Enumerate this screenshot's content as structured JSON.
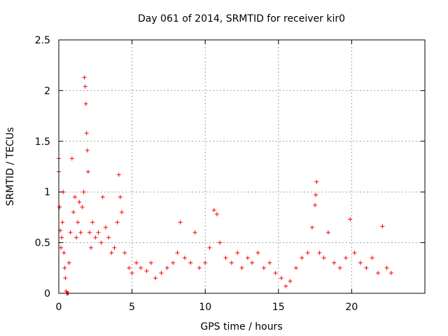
{
  "chart_data": {
    "type": "scatter",
    "title": "Day 061 of 2014, SRMTID for receiver kir0",
    "xlabel": "GPS time / hours",
    "ylabel": "SRMTID / TECUs",
    "xlim": [
      0,
      25
    ],
    "ylim": [
      0,
      2.5
    ],
    "xticks": [
      0,
      5,
      10,
      15,
      20
    ],
    "xtick_labels": [
      "0",
      "5",
      "10",
      "15",
      "20"
    ],
    "yticks": [
      0,
      0.5,
      1,
      1.5,
      2,
      2.5
    ],
    "ytick_labels": [
      "0",
      "0.5",
      "1",
      "1.5",
      "2",
      "2.5"
    ],
    "grid": true,
    "marker": "+",
    "color": "#ff0000",
    "data_extent_hours": [
      0,
      22.7
    ],
    "points": [
      [
        0.0,
        1.33
      ],
      [
        0.0,
        1.2
      ],
      [
        0.05,
        0.85
      ],
      [
        0.1,
        0.62
      ],
      [
        0.15,
        0.45
      ],
      [
        0.2,
        0.55
      ],
      [
        0.25,
        0.7
      ],
      [
        0.3,
        1.0
      ],
      [
        0.35,
        0.4
      ],
      [
        0.4,
        0.25
      ],
      [
        0.45,
        0.15
      ],
      [
        0.5,
        0.02
      ],
      [
        0.55,
        0.0
      ],
      [
        0.6,
        0.0
      ],
      [
        0.65,
        0.0
      ],
      [
        0.7,
        0.3
      ],
      [
        0.8,
        0.6
      ],
      [
        0.9,
        1.33
      ],
      [
        1.0,
        0.8
      ],
      [
        1.1,
        0.95
      ],
      [
        1.2,
        0.55
      ],
      [
        1.3,
        0.7
      ],
      [
        1.4,
        0.9
      ],
      [
        1.5,
        0.6
      ],
      [
        1.6,
        0.85
      ],
      [
        1.7,
        1.0
      ],
      [
        1.75,
        2.13
      ],
      [
        1.8,
        2.04
      ],
      [
        1.85,
        1.87
      ],
      [
        1.9,
        1.58
      ],
      [
        1.95,
        1.41
      ],
      [
        2.0,
        1.2
      ],
      [
        2.1,
        0.6
      ],
      [
        2.2,
        0.45
      ],
      [
        2.3,
        0.7
      ],
      [
        2.5,
        0.55
      ],
      [
        2.7,
        0.6
      ],
      [
        2.9,
        0.5
      ],
      [
        3.0,
        0.95
      ],
      [
        3.2,
        0.65
      ],
      [
        3.4,
        0.55
      ],
      [
        3.6,
        0.4
      ],
      [
        3.8,
        0.45
      ],
      [
        4.0,
        0.7
      ],
      [
        4.1,
        1.17
      ],
      [
        4.2,
        0.95
      ],
      [
        4.3,
        0.8
      ],
      [
        4.5,
        0.4
      ],
      [
        4.8,
        0.25
      ],
      [
        5.0,
        0.2
      ],
      [
        5.3,
        0.3
      ],
      [
        5.6,
        0.25
      ],
      [
        6.0,
        0.22
      ],
      [
        6.3,
        0.3
      ],
      [
        6.6,
        0.15
      ],
      [
        7.0,
        0.2
      ],
      [
        7.4,
        0.25
      ],
      [
        7.8,
        0.3
      ],
      [
        8.1,
        0.4
      ],
      [
        8.3,
        0.7
      ],
      [
        8.6,
        0.35
      ],
      [
        9.0,
        0.3
      ],
      [
        9.3,
        0.6
      ],
      [
        9.6,
        0.25
      ],
      [
        10.0,
        0.3
      ],
      [
        10.3,
        0.45
      ],
      [
        10.6,
        0.82
      ],
      [
        10.8,
        0.78
      ],
      [
        11.0,
        0.5
      ],
      [
        11.4,
        0.35
      ],
      [
        11.8,
        0.3
      ],
      [
        12.2,
        0.4
      ],
      [
        12.5,
        0.25
      ],
      [
        12.9,
        0.35
      ],
      [
        13.2,
        0.3
      ],
      [
        13.6,
        0.4
      ],
      [
        14.0,
        0.25
      ],
      [
        14.4,
        0.3
      ],
      [
        14.8,
        0.2
      ],
      [
        15.2,
        0.15
      ],
      [
        15.5,
        0.07
      ],
      [
        15.8,
        0.12
      ],
      [
        16.2,
        0.25
      ],
      [
        16.6,
        0.35
      ],
      [
        17.0,
        0.4
      ],
      [
        17.3,
        0.65
      ],
      [
        17.5,
        0.87
      ],
      [
        17.55,
        0.97
      ],
      [
        17.6,
        1.1
      ],
      [
        17.8,
        0.4
      ],
      [
        18.1,
        0.35
      ],
      [
        18.4,
        0.6
      ],
      [
        18.8,
        0.3
      ],
      [
        19.2,
        0.25
      ],
      [
        19.6,
        0.35
      ],
      [
        19.9,
        0.73
      ],
      [
        20.2,
        0.4
      ],
      [
        20.6,
        0.3
      ],
      [
        21.0,
        0.25
      ],
      [
        21.4,
        0.35
      ],
      [
        21.8,
        0.2
      ],
      [
        22.1,
        0.66
      ],
      [
        22.4,
        0.25
      ],
      [
        22.7,
        0.2
      ]
    ]
  }
}
